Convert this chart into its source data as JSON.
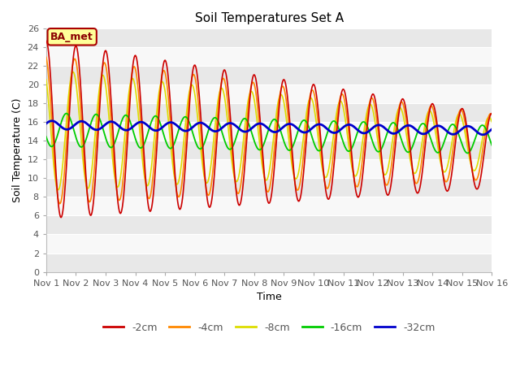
{
  "title": "Soil Temperatures Set A",
  "xlabel": "Time",
  "ylabel": "Soil Temperature (C)",
  "ylim": [
    0,
    26
  ],
  "yticks": [
    0,
    2,
    4,
    6,
    8,
    10,
    12,
    14,
    16,
    18,
    20,
    22,
    24,
    26
  ],
  "xtick_labels": [
    "Nov 1",
    "Nov 2",
    "Nov 3",
    "Nov 4",
    "Nov 5",
    "Nov 6",
    "Nov 7",
    "Nov 8",
    "Nov 9",
    "Nov 10",
    "Nov 11",
    "Nov 12",
    "Nov 13",
    "Nov 14",
    "Nov 15",
    "Nov 16"
  ],
  "colors": {
    "-2cm": "#cc0000",
    "-4cm": "#ff8800",
    "-8cm": "#dddd00",
    "-16cm": "#00cc00",
    "-32cm": "#0000cc"
  },
  "annotation_text": "BA_met",
  "annotation_bg": "#ffff99",
  "annotation_border": "#aa0000",
  "bg_color": "#ffffff",
  "band_colors": [
    "#e8e8e8",
    "#f8f8f8"
  ],
  "legend_labels": [
    "-2cm",
    "-4cm",
    "-8cm",
    "-16cm",
    "-32cm"
  ],
  "n_points": 720,
  "n_days": 15
}
